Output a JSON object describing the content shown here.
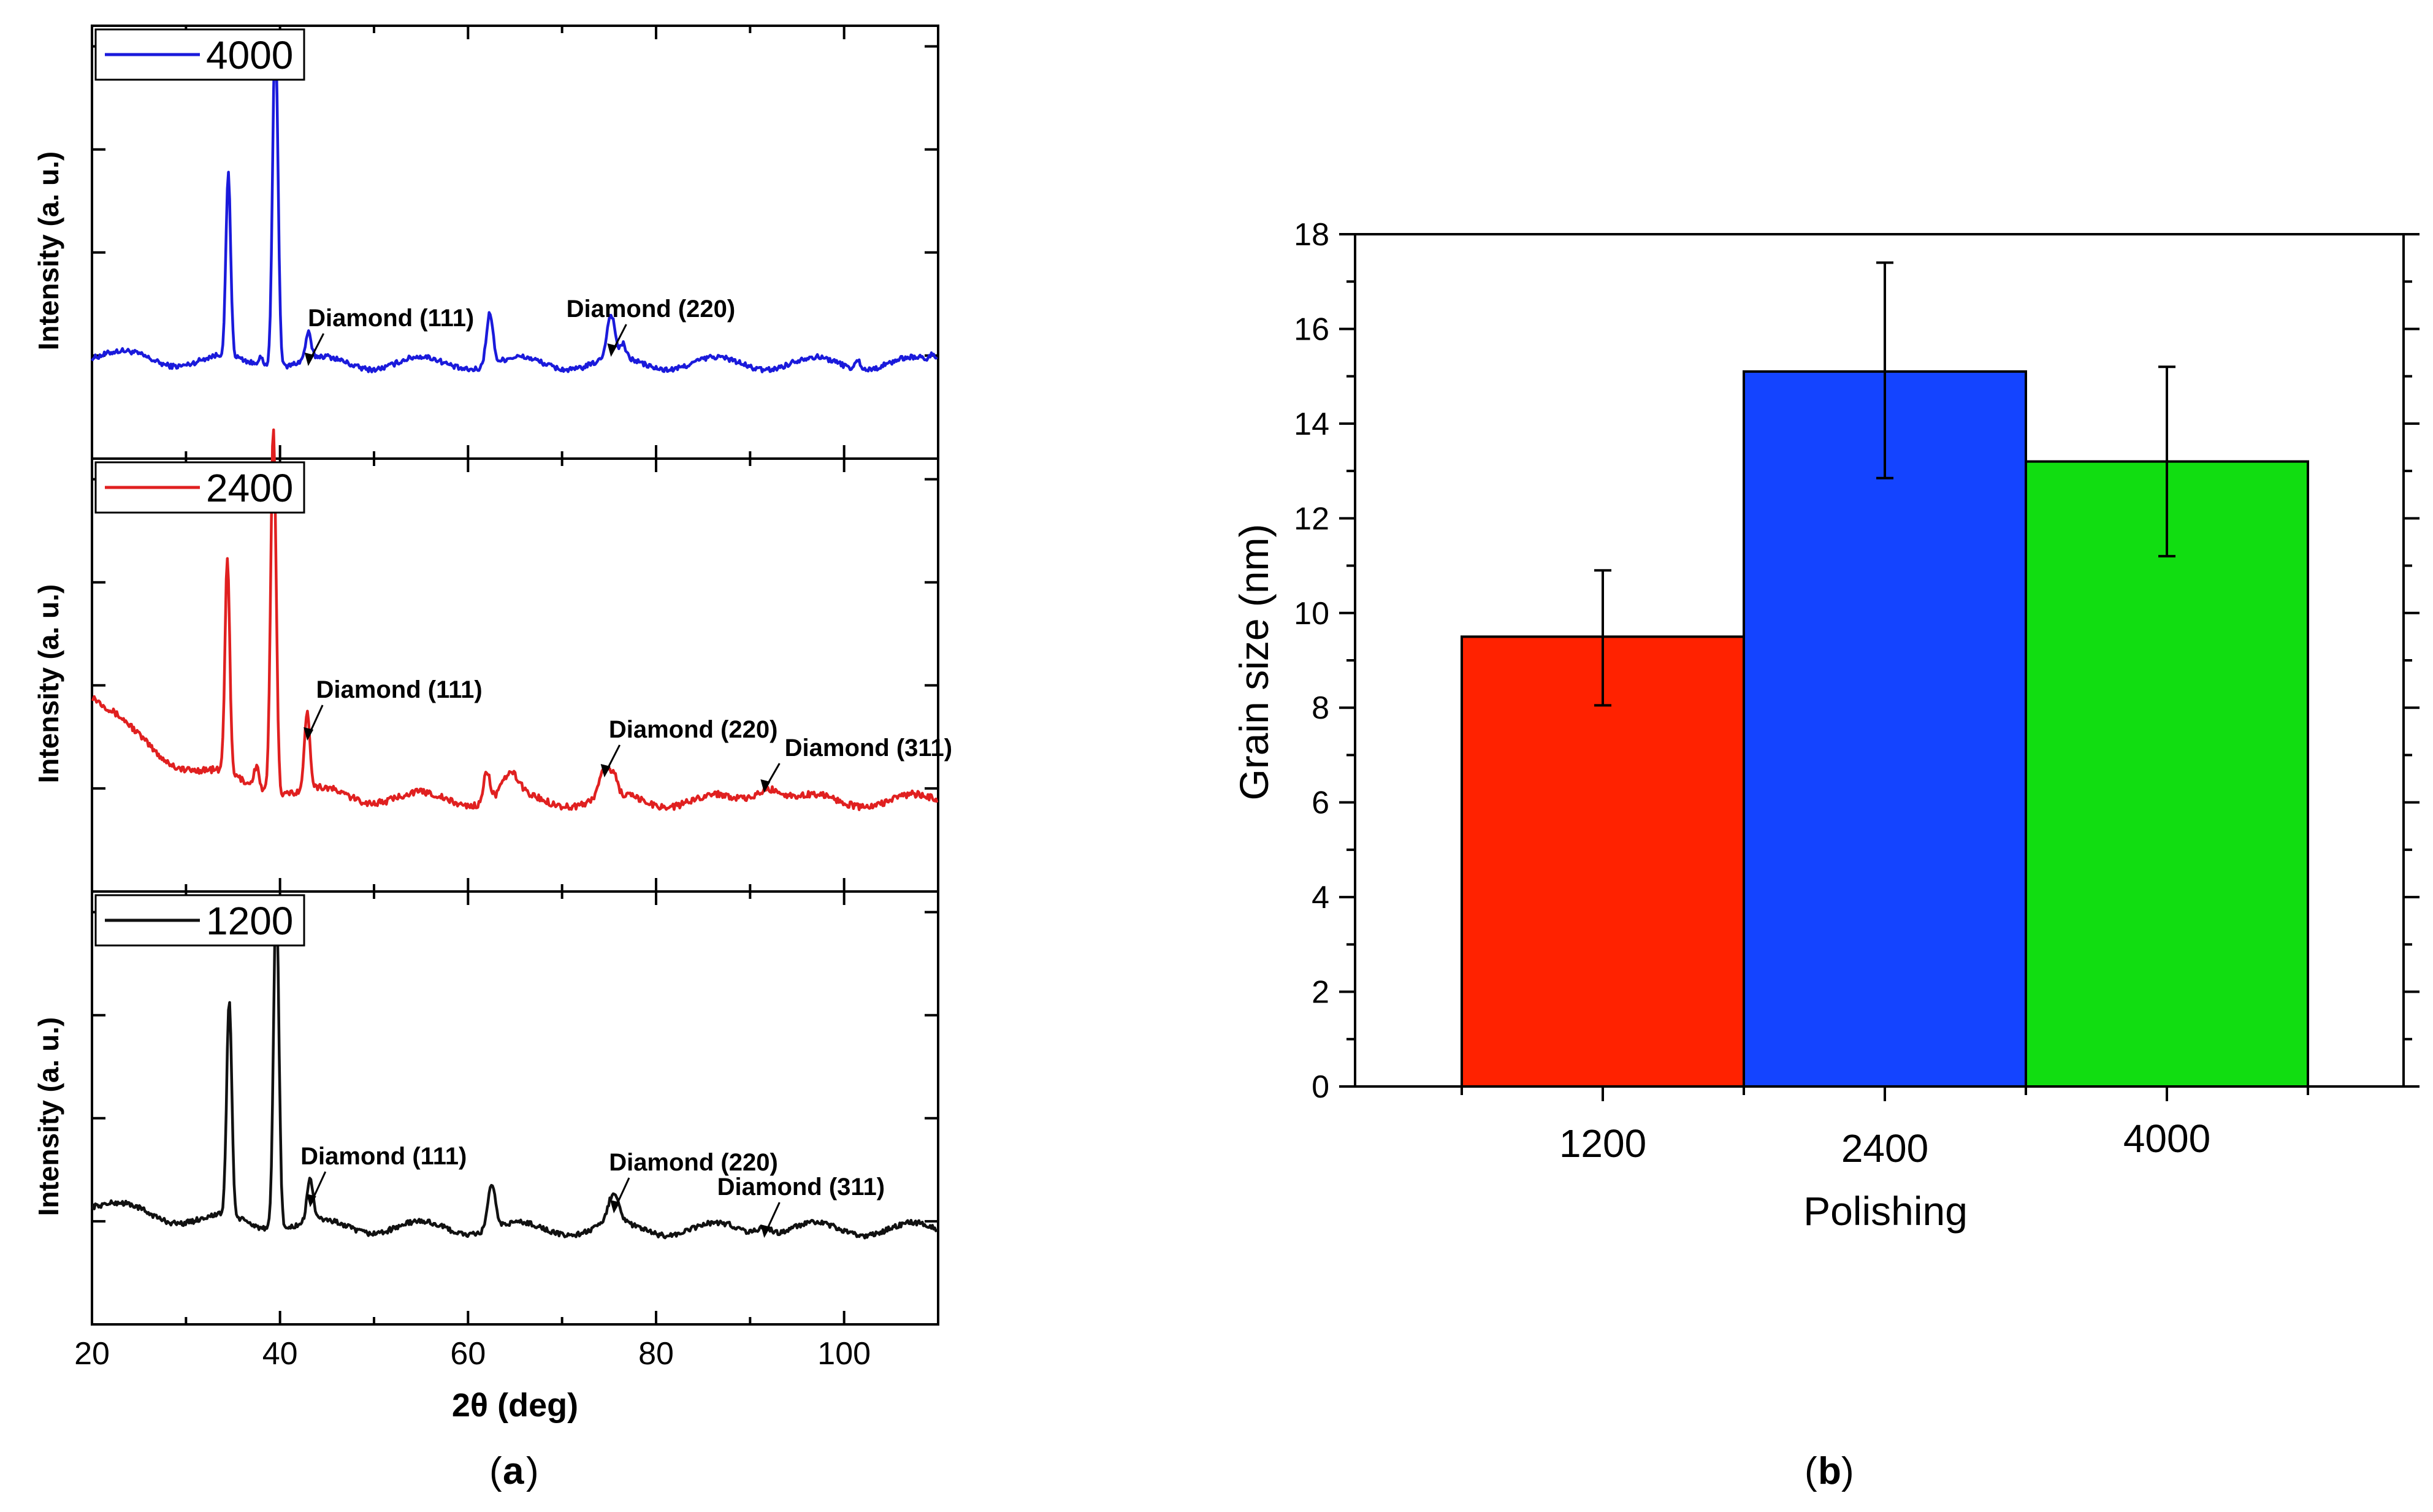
{
  "chart_data": [
    {
      "type": "line",
      "panel_label": "a",
      "xlabel": "2θ (deg)",
      "ylabel": "Intensity (a. u.)",
      "xlim": [
        20,
        110
      ],
      "xticks": [
        "20",
        "40",
        "60",
        "80",
        "100"
      ],
      "stack_order_top_to_bottom": [
        "4000",
        "2400",
        "1200"
      ],
      "series": [
        {
          "name": "4000",
          "color": "#1a1adb",
          "baseline": 0.22,
          "noise": 0.012,
          "background": "flat",
          "peaks": [
            {
              "x": 34.5,
              "h": 0.42,
              "w": 0.35
            },
            {
              "x": 37.9,
              "h": 0.02,
              "w": 0.4
            },
            {
              "x": 39.5,
              "h": 0.78,
              "w": 0.4
            },
            {
              "x": 43.0,
              "h": 0.06,
              "w": 0.4
            },
            {
              "x": 62.3,
              "h": 0.12,
              "w": 0.5
            },
            {
              "x": 75.2,
              "h": 0.1,
              "w": 0.6
            },
            {
              "x": 76.5,
              "h": 0.03,
              "w": 0.4
            },
            {
              "x": 101.5,
              "h": 0.02,
              "w": 0.4
            },
            {
              "x": 109.5,
              "h": 0.02,
              "w": 0.4
            }
          ],
          "annotations": [
            {
              "text": "Diamond (111)",
              "x": 43.0
            },
            {
              "text": "Diamond (220)",
              "x": 75.2
            }
          ]
        },
        {
          "name": "2400",
          "color": "#e02020",
          "baseline": 0.24,
          "noise": 0.015,
          "background": "decay",
          "peaks": [
            {
              "x": 34.4,
              "h": 0.5,
              "w": 0.35
            },
            {
              "x": 37.5,
              "h": 0.05,
              "w": 0.4
            },
            {
              "x": 39.3,
              "h": 0.85,
              "w": 0.4
            },
            {
              "x": 42.9,
              "h": 0.18,
              "w": 0.4
            },
            {
              "x": 62.0,
              "h": 0.07,
              "w": 0.5
            },
            {
              "x": 64.5,
              "h": 0.05,
              "w": 1.2
            },
            {
              "x": 74.5,
              "h": 0.06,
              "w": 0.8
            },
            {
              "x": 75.5,
              "h": 0.04,
              "w": 0.5
            },
            {
              "x": 92.0,
              "h": 0.04,
              "w": 2.0
            }
          ],
          "annotations": [
            {
              "text": "Diamond (111)",
              "x": 42.9
            },
            {
              "text": "Diamond (220)",
              "x": 74.5
            },
            {
              "text": "Diamond (311)",
              "x": 91.5
            }
          ]
        },
        {
          "name": "1200",
          "color": "#111111",
          "baseline": 0.22,
          "noise": 0.012,
          "background": "slight-decay",
          "peaks": [
            {
              "x": 34.6,
              "h": 0.5,
              "w": 0.38
            },
            {
              "x": 39.6,
              "h": 0.78,
              "w": 0.4
            },
            {
              "x": 43.2,
              "h": 0.1,
              "w": 0.45
            },
            {
              "x": 62.5,
              "h": 0.1,
              "w": 0.6
            },
            {
              "x": 75.5,
              "h": 0.07,
              "w": 0.8
            },
            {
              "x": 91.5,
              "h": 0.02,
              "w": 1.0
            }
          ],
          "annotations": [
            {
              "text": "Diamond (111)",
              "x": 43.2
            },
            {
              "text": "Diamond (220)",
              "x": 75.5
            },
            {
              "text": "Diamond (311)",
              "x": 91.5
            }
          ]
        }
      ]
    },
    {
      "type": "bar",
      "panel_label": "b",
      "xlabel": "Polishing",
      "ylabel": "Grain size (nm)",
      "ylim": [
        0,
        18
      ],
      "yticks": [
        "0",
        "2",
        "4",
        "6",
        "8",
        "10",
        "12",
        "14",
        "16",
        "18"
      ],
      "categories": [
        "1200",
        "2400",
        "4000"
      ],
      "values": [
        9.5,
        15.1,
        13.2
      ],
      "error_low": [
        8.05,
        12.85,
        11.2
      ],
      "error_high": [
        10.9,
        17.4,
        15.2
      ],
      "colors": [
        "#ff2200",
        "#1444ff",
        "#11dd11"
      ]
    }
  ]
}
